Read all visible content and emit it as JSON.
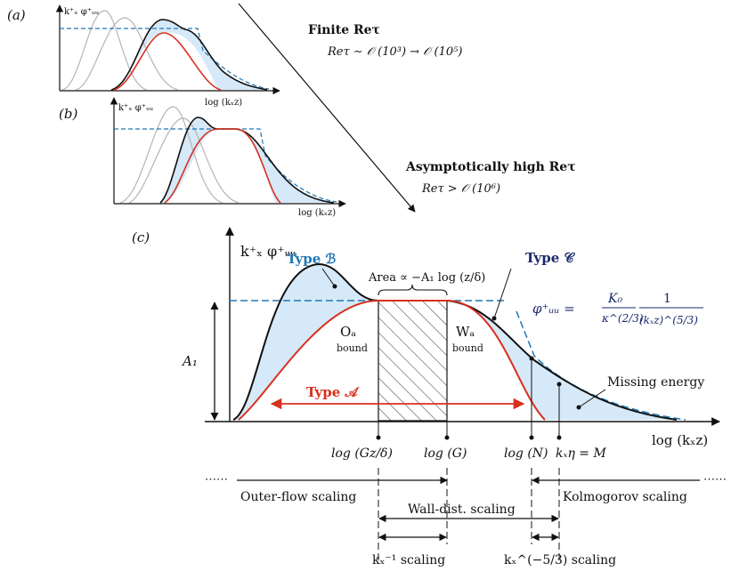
{
  "panels": {
    "a": {
      "label": "(a)",
      "ylabel": "k⁺ₓ φ⁺ᵤᵤ",
      "xlabel": "log (kₓz)"
    },
    "b": {
      "label": "(b)",
      "ylabel": "k⁺ₓ φ⁺ᵤᵤ",
      "xlabel": "log (kₓz)"
    },
    "c": {
      "label": "(c)",
      "ylabel": "k⁺ₓ φ⁺ᵤᵤ",
      "xlabel": "log (kₓz)"
    }
  },
  "arrow_annotations": {
    "finite_title": "Finite Reτ",
    "finite_range": "Reτ ∼ 𝒪 (10³) → 𝒪 (10⁵)",
    "high_title": "Asymptotically high Reτ",
    "high_range": "Reτ > 𝒪 (10⁶)"
  },
  "panel_c": {
    "type_b": "Type ℬ",
    "type_c": "Type 𝒞",
    "type_a": "Type 𝒜",
    "area_label": "Area ∝ −A₁ log (z/δ)",
    "a1": "A₁",
    "oa": "Oₐ",
    "wa": "Wₐ",
    "bound": "bound",
    "formula_lhs": "φ⁺ᵤᵤ =",
    "formula_k0": "K₀",
    "formula_kappa": "κ^(2/3)",
    "formula_one": "1",
    "formula_den": "(kₓz)^(5/3)",
    "missing": "Missing energy",
    "ticks": [
      "log (Gz/δ)",
      "log (G)",
      "log (N)",
      "kₓη = M"
    ]
  },
  "scalings": {
    "outer": "Outer-flow scaling",
    "wall": "Wall-dist. scaling",
    "kolmogorov": "Kolmogorov scaling",
    "kminus1": "kₓ⁻¹ scaling",
    "kminus53": "kₓ^(−5/3) scaling",
    "dots_left": "⋯⋯",
    "dots_right": "⋯⋯"
  },
  "colors": {
    "black": "#111111",
    "red": "#d7301f",
    "blue": "#1f77b4",
    "navy": "#1b2a6b",
    "fill": "#d6e9f8",
    "grey": "#b5b5b5"
  }
}
